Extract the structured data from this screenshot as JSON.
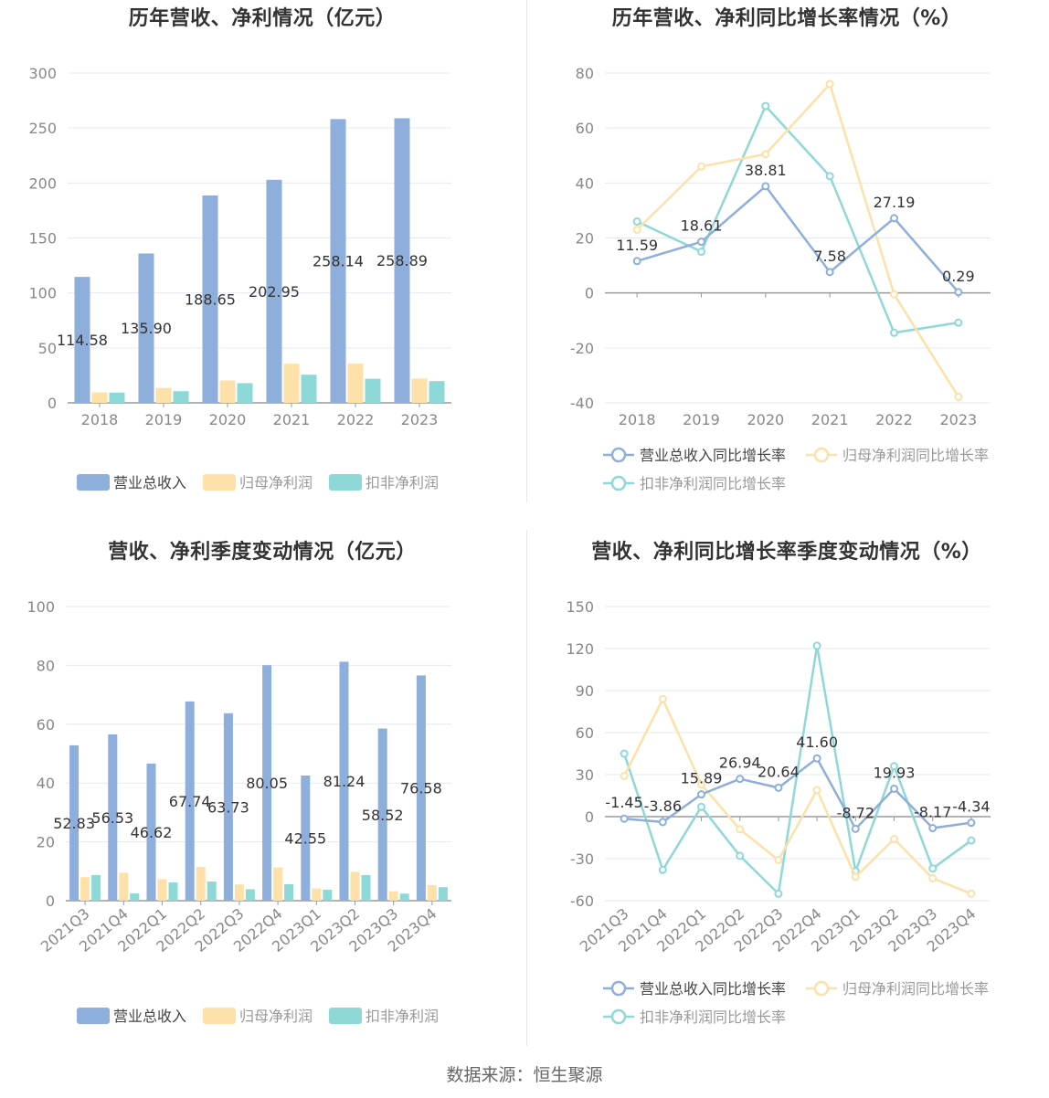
{
  "colors": {
    "revenue": "#8eaedc",
    "net_profit": "#fde1a9",
    "deducted_profit": "#8fd8d8",
    "revenue_line": "#8eaedc",
    "net_profit_line": "#fde1a9",
    "deducted_profit_line": "#8fd8d8",
    "grid": "#e6e9f2",
    "axis_text": "#888888",
    "label_text": "#333333",
    "title": "#333333"
  },
  "source": {
    "label": "数据来源：",
    "value": "恒生聚源"
  },
  "chart_data": [
    {
      "type": "bar",
      "title": "历年营收、净利情况（亿元）",
      "categories": [
        "2018",
        "2019",
        "2020",
        "2021",
        "2022",
        "2023"
      ],
      "ylim": [
        0,
        300
      ],
      "yticks": [
        0,
        50,
        100,
        150,
        200,
        250,
        300
      ],
      "grid": true,
      "legend_position": "bottom",
      "series": [
        {
          "name": "营业总收入",
          "values": [
            114.58,
            135.9,
            188.65,
            202.95,
            258.14,
            258.89
          ],
          "show_labels": true
        },
        {
          "name": "归母净利润",
          "values": [
            9.5,
            13.6,
            20.4,
            35.6,
            35.6,
            22.1
          ],
          "show_labels": false
        },
        {
          "name": "扣非净利润",
          "values": [
            9.3,
            10.6,
            17.9,
            25.6,
            21.9,
            19.8
          ],
          "show_labels": false
        }
      ]
    },
    {
      "type": "line",
      "title": "历年营收、净利同比增长率情况（%）",
      "categories": [
        "2018",
        "2019",
        "2020",
        "2021",
        "2022",
        "2023"
      ],
      "ylim": [
        -40,
        80
      ],
      "yticks": [
        -40,
        -20,
        0,
        20,
        40,
        60,
        80
      ],
      "grid": true,
      "legend_position": "bottom",
      "series": [
        {
          "name": "营业总收入同比增长率",
          "values": [
            11.59,
            18.61,
            38.81,
            7.58,
            27.19,
            0.29
          ],
          "show_labels": true
        },
        {
          "name": "归母净利润同比增长率",
          "values": [
            23.0,
            46.0,
            50.5,
            76.0,
            -0.5,
            -37.8
          ],
          "show_labels": false
        },
        {
          "name": "扣非净利润同比增长率",
          "values": [
            26.0,
            15.0,
            68.0,
            42.5,
            -14.5,
            -10.8
          ],
          "show_labels": false
        }
      ]
    },
    {
      "type": "bar",
      "title": "营收、净利季度变动情况（亿元）",
      "categories": [
        "2021Q3",
        "2021Q4",
        "2022Q1",
        "2022Q2",
        "2022Q3",
        "2022Q4",
        "2023Q1",
        "2023Q2",
        "2023Q3",
        "2023Q4"
      ],
      "ylim": [
        0,
        100
      ],
      "yticks": [
        0,
        20,
        40,
        60,
        80,
        100
      ],
      "grid": true,
      "legend_position": "bottom",
      "series": [
        {
          "name": "营业总收入",
          "values": [
            52.83,
            56.53,
            46.62,
            67.74,
            63.73,
            80.05,
            42.55,
            81.24,
            58.52,
            76.58
          ],
          "show_labels": true
        },
        {
          "name": "归母净利润",
          "values": [
            8.0,
            9.5,
            7.3,
            11.5,
            5.5,
            11.3,
            4.2,
            9.8,
            3.2,
            5.3
          ],
          "show_labels": false
        },
        {
          "name": "扣非净利润",
          "values": [
            8.7,
            2.5,
            6.2,
            6.5,
            3.9,
            5.6,
            3.7,
            8.7,
            2.4,
            4.6
          ],
          "show_labels": false
        }
      ]
    },
    {
      "type": "line",
      "title": "营收、净利同比增长率季度变动情况（%）",
      "categories": [
        "2021Q3",
        "2021Q4",
        "2022Q1",
        "2022Q2",
        "2022Q3",
        "2022Q4",
        "2023Q1",
        "2023Q2",
        "2023Q3",
        "2023Q4"
      ],
      "ylim": [
        -60,
        150
      ],
      "yticks": [
        -60,
        -30,
        0,
        30,
        60,
        90,
        120,
        150
      ],
      "grid": true,
      "legend_position": "bottom",
      "series": [
        {
          "name": "营业总收入同比增长率",
          "values": [
            -1.45,
            -3.86,
            15.89,
            26.94,
            20.64,
            41.6,
            -8.72,
            19.93,
            -8.17,
            -4.34
          ],
          "show_labels": true
        },
        {
          "name": "归母净利润同比增长率",
          "values": [
            29.0,
            84.0,
            23.0,
            -9.0,
            -31.0,
            19.0,
            -43.0,
            -16.0,
            -44.0,
            -55.0
          ],
          "show_labels": false
        },
        {
          "name": "扣非净利润同比增长率",
          "values": [
            45.0,
            -38.0,
            7.0,
            -28.0,
            -55.0,
            122.0,
            -39.0,
            36.0,
            -37.0,
            -17.0
          ],
          "show_labels": false
        }
      ]
    }
  ]
}
